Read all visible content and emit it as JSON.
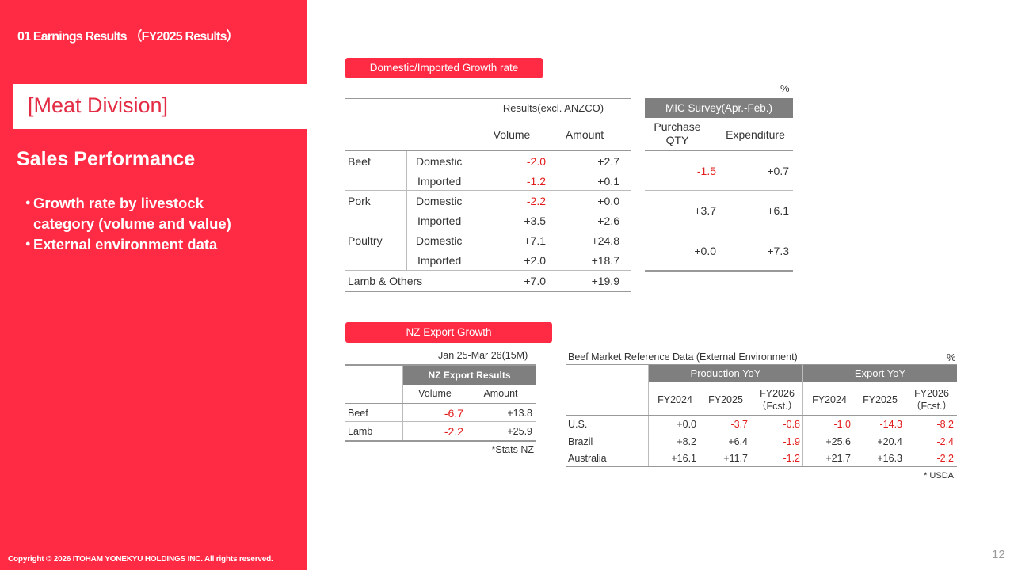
{
  "header": {
    "section_title": "01 Earnings Results （FY2025 Results）",
    "division": "[Meat Division]",
    "sales_title": "Sales Performance",
    "bullets": [
      "Growth rate by livestock",
      "category (volume and value)",
      "External environment data"
    ],
    "bullet_dot": "・"
  },
  "growth": {
    "badge": "Domestic/Imported  Growth rate",
    "percent": "%",
    "results_header": "Results(excl. ANZCO)",
    "col_volume": "Volume",
    "col_amount": "Amount",
    "rows": [
      {
        "cat": "Beef",
        "sub": "Domestic",
        "vol": "-2.0",
        "amt": "+2.7"
      },
      {
        "cat": "",
        "sub": "Imported",
        "vol": "-1.2",
        "amt": "+0.1"
      },
      {
        "cat": "Pork",
        "sub": "Domestic",
        "vol": "-2.2",
        "amt": "+0.0"
      },
      {
        "cat": "",
        "sub": "Imported",
        "vol": "+3.5",
        "amt": "+2.6"
      },
      {
        "cat": "Poultry",
        "sub": "Domestic",
        "vol": "+7.1",
        "amt": "+24.8"
      },
      {
        "cat": "",
        "sub": "Imported",
        "vol": "+2.0",
        "amt": "+18.7"
      }
    ],
    "lamb_row": {
      "cat": "Lamb & Others",
      "vol": "+7.0",
      "amt": "+19.9"
    },
    "mic_header": "MIC Survey(Apr.-Feb.)",
    "mic_col1": "Purchase QTY",
    "mic_col2": "Expenditure",
    "mic_rows": [
      {
        "qty": "-1.5",
        "exp": "+0.7"
      },
      {
        "qty": "+3.7",
        "exp": "+6.1"
      },
      {
        "qty": "+0.0",
        "exp": "+7.3"
      }
    ]
  },
  "nz": {
    "badge": "NZ Export Growth",
    "period": "Jan 25-Mar 26(15M)",
    "header": "NZ Export Results",
    "col_volume": "Volume",
    "col_amount": "Amount",
    "rows": [
      {
        "cat": "Beef",
        "vol": "-6.7",
        "amt": "+13.8"
      },
      {
        "cat": "Lamb",
        "vol": "-2.2",
        "amt": "+25.9"
      }
    ],
    "source": "*Stats NZ"
  },
  "beef_market": {
    "title": "Beef Market Reference Data (External Environment)",
    "percent": "%",
    "production_header": "Production YoY",
    "export_header": "Export YoY",
    "years": [
      "FY2024",
      "FY2025",
      "FY2026\n（Fcst.）"
    ],
    "rows": [
      {
        "country": "U.S.",
        "values": [
          "+0.0",
          "-3.7",
          "-0.8",
          "-1.0",
          "-14.3",
          "-8.2"
        ]
      },
      {
        "country": "Brazil",
        "values": [
          "+8.2",
          "+6.4",
          "-1.9",
          "+25.6",
          "+20.4",
          "-2.4"
        ]
      },
      {
        "country": "Australia",
        "values": [
          "+16.1",
          "+11.7",
          "-1.2",
          "+21.7",
          "+16.3",
          "-2.2"
        ]
      }
    ],
    "source": "* USDA"
  },
  "footer": {
    "copyright": "Copyright © 2026 ITOHAM YONEKYU HOLDINGS INC. All rights reserved.",
    "page_number": "12"
  },
  "colors": {
    "brand_red": "#ff2a44",
    "negative": "#e21d1d",
    "header_gray": "#7f7f7f"
  }
}
